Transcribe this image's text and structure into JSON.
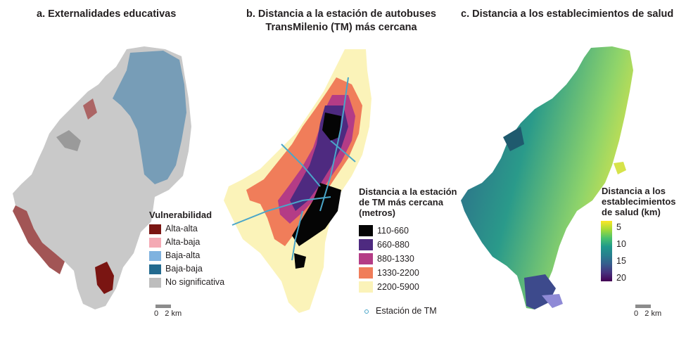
{
  "panel_a": {
    "title": "a. Externalidades educativas",
    "legend_title": "Vulnerabilidad",
    "legend": [
      {
        "label": "Alta-alta",
        "color": "#7a1512"
      },
      {
        "label": "Alta-baja",
        "color": "#f4a9b4"
      },
      {
        "label": "Baja-alta",
        "color": "#7fb2df"
      },
      {
        "label": "Baja-baja",
        "color": "#236a8f"
      },
      {
        "label": "No significativa",
        "color": "#bdbdbd"
      }
    ],
    "scale": {
      "zero": "0",
      "dist": "2 km"
    }
  },
  "panel_b": {
    "title_line1": "b. Distancia a la estación de autobuses",
    "title_line2": "TransMilenio (TM) más cercana",
    "legend_title_line1": "Distancia a la estación",
    "legend_title_line2": "de TM más cercana",
    "legend_title_line3": "(metros)",
    "legend": [
      {
        "label": "110-660",
        "color": "#050505"
      },
      {
        "label": "660-880",
        "color": "#4e2a80"
      },
      {
        "label": "880-1330",
        "color": "#b43c86"
      },
      {
        "label": "1330-2200",
        "color": "#f07d5a"
      },
      {
        "label": "2200-5900",
        "color": "#fbf3b9"
      }
    ],
    "station_label": "Estación de TM",
    "station_color": "#4aa6c9"
  },
  "panel_c": {
    "title": "c. Distancia a los establecimientos de salud",
    "legend_title_line1": "Distancia a los",
    "legend_title_line2": "establecimientos",
    "legend_title_line3": "de salud (km)",
    "ticks": [
      "5",
      "10",
      "15",
      "20"
    ],
    "scale": {
      "zero": "0",
      "dist": "2 km"
    }
  }
}
